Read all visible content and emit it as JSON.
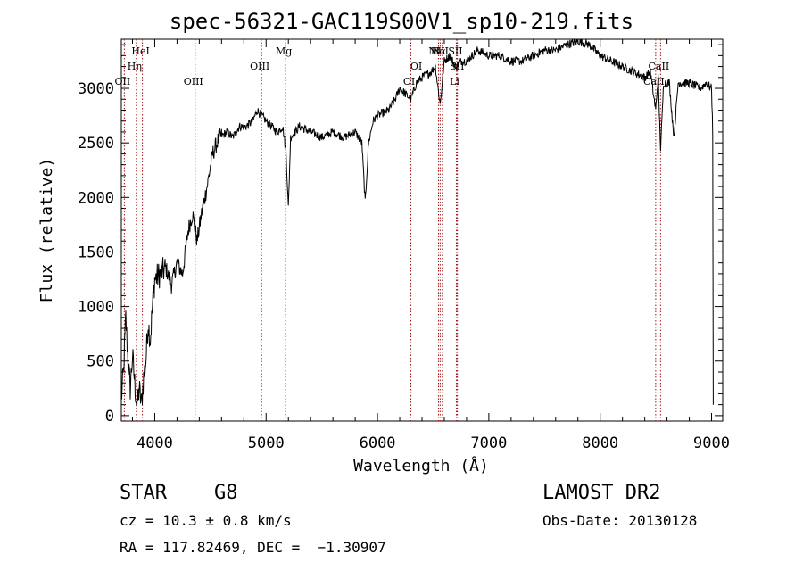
{
  "chart_data": {
    "type": "line",
    "title": "spec-56321-GAC119S00V1_sp10-219.fits",
    "xlabel": "Wavelength (Å)",
    "ylabel": "Flux (relative)",
    "xlim": [
      3700,
      9100
    ],
    "ylim": [
      -50,
      3450
    ],
    "xticks": [
      4000,
      5000,
      6000,
      7000,
      8000,
      9000
    ],
    "yticks": [
      0,
      500,
      1000,
      1500,
      2000,
      2500,
      3000
    ],
    "grid": false,
    "series": [
      {
        "color": "#000000",
        "points": [
          [
            3700,
            150
          ],
          [
            3720,
            400
          ],
          [
            3740,
            900
          ],
          [
            3760,
            500
          ],
          [
            3780,
            250
          ],
          [
            3800,
            550
          ],
          [
            3820,
            300
          ],
          [
            3840,
            80
          ],
          [
            3860,
            250
          ],
          [
            3880,
            100
          ],
          [
            3900,
            350
          ],
          [
            3920,
            500
          ],
          [
            3940,
            850
          ],
          [
            3960,
            700
          ],
          [
            3980,
            1000
          ],
          [
            4000,
            1250
          ],
          [
            4050,
            1300
          ],
          [
            4100,
            1350
          ],
          [
            4150,
            1200
          ],
          [
            4200,
            1400
          ],
          [
            4250,
            1300
          ],
          [
            4300,
            1700
          ],
          [
            4340,
            1850
          ],
          [
            4380,
            1600
          ],
          [
            4420,
            1850
          ],
          [
            4470,
            2100
          ],
          [
            4520,
            2400
          ],
          [
            4580,
            2550
          ],
          [
            4650,
            2600
          ],
          [
            4700,
            2550
          ],
          [
            4760,
            2650
          ],
          [
            4820,
            2650
          ],
          [
            4880,
            2700
          ],
          [
            4920,
            2800
          ],
          [
            4960,
            2750
          ],
          [
            5000,
            2700
          ],
          [
            5050,
            2650
          ],
          [
            5100,
            2600
          ],
          [
            5150,
            2650
          ],
          [
            5180,
            2400
          ],
          [
            5200,
            1900
          ],
          [
            5220,
            2550
          ],
          [
            5300,
            2650
          ],
          [
            5400,
            2600
          ],
          [
            5500,
            2550
          ],
          [
            5600,
            2600
          ],
          [
            5700,
            2550
          ],
          [
            5800,
            2600
          ],
          [
            5860,
            2500
          ],
          [
            5890,
            1950
          ],
          [
            5920,
            2500
          ],
          [
            5960,
            2700
          ],
          [
            6000,
            2750
          ],
          [
            6100,
            2800
          ],
          [
            6160,
            2900
          ],
          [
            6200,
            3000
          ],
          [
            6250,
            2950
          ],
          [
            6300,
            2900
          ],
          [
            6350,
            3050
          ],
          [
            6400,
            3100
          ],
          [
            6480,
            3150
          ],
          [
            6520,
            3200
          ],
          [
            6563,
            2850
          ],
          [
            6600,
            3250
          ],
          [
            6650,
            3300
          ],
          [
            6700,
            3200
          ],
          [
            6750,
            3250
          ],
          [
            6800,
            3250
          ],
          [
            6850,
            3300
          ],
          [
            6900,
            3350
          ],
          [
            7000,
            3300
          ],
          [
            7100,
            3300
          ],
          [
            7200,
            3250
          ],
          [
            7300,
            3250
          ],
          [
            7400,
            3300
          ],
          [
            7500,
            3350
          ],
          [
            7600,
            3350
          ],
          [
            7700,
            3400
          ],
          [
            7800,
            3430
          ],
          [
            7850,
            3420
          ],
          [
            7900,
            3400
          ],
          [
            8000,
            3300
          ],
          [
            8100,
            3250
          ],
          [
            8200,
            3200
          ],
          [
            8300,
            3150
          ],
          [
            8400,
            3100
          ],
          [
            8450,
            3150
          ],
          [
            8498,
            2800
          ],
          [
            8520,
            3100
          ],
          [
            8542,
            2450
          ],
          [
            8570,
            3050
          ],
          [
            8620,
            3050
          ],
          [
            8662,
            2550
          ],
          [
            8700,
            3050
          ],
          [
            8800,
            3050
          ],
          [
            8900,
            3000
          ],
          [
            8950,
            3050
          ],
          [
            9000,
            3000
          ],
          [
            9010,
            2600
          ],
          [
            9015,
            100
          ]
        ]
      }
    ],
    "lines": [
      {
        "name": "OII",
        "x": 3727,
        "row": 3
      },
      {
        "name": "Hη",
        "x": 3835,
        "row": 2
      },
      {
        "name": "HeI",
        "x": 3889,
        "row": 1
      },
      {
        "name": "OIII",
        "x": 4363,
        "row": 3
      },
      {
        "name": "OIII",
        "x": 4959,
        "row": 2
      },
      {
        "name": "Mg",
        "x": 5175,
        "row": 1
      },
      {
        "name": "OI",
        "x": 6300,
        "row": 3
      },
      {
        "name": "OI",
        "x": 6364,
        "row": 2
      },
      {
        "name": "NII",
        "x": 6548,
        "row": 1
      },
      {
        "name": "Hα",
        "x": 6563,
        "row": 1
      },
      {
        "name": "NII",
        "x": 6583,
        "row": 1
      },
      {
        "name": "Li",
        "x": 6708,
        "row": 3
      },
      {
        "name": "SII",
        "x": 6716,
        "row": 1
      },
      {
        "name": "SII",
        "x": 6731,
        "row": 2
      },
      {
        "name": "CaII",
        "x": 8498,
        "row": 3
      },
      {
        "name": "CaII",
        "x": 8542,
        "row": 2
      }
    ]
  },
  "info": {
    "object_type": "STAR",
    "subclass": "G8",
    "survey": "LAMOST DR2",
    "redshift": "cz = 10.3 ± 0.8 km/s",
    "obs_date": "Obs-Date: 20130128",
    "coords": "RA = 117.82469, DEC =  −1.30907"
  }
}
